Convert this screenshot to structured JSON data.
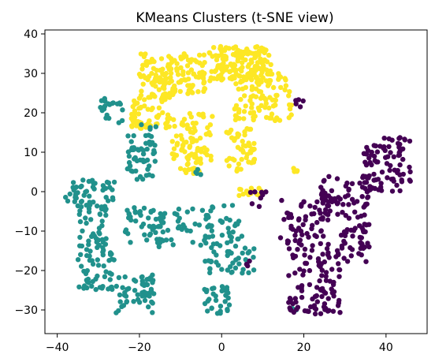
{
  "chart_data": {
    "type": "scatter",
    "title": "KMeans Clusters (t-SNE view)",
    "xlabel": "",
    "ylabel": "",
    "xlim": [
      -43,
      50
    ],
    "ylim": [
      -36,
      41
    ],
    "x_ticks": [
      -40,
      -20,
      0,
      20,
      40
    ],
    "y_ticks": [
      -30,
      -20,
      -10,
      0,
      10,
      20,
      30,
      40
    ],
    "grid": false,
    "legend": "none",
    "series": [
      {
        "color": "#fde725",
        "clusters": [
          {
            "x": [
              -20,
              -4
            ],
            "y": [
              24,
              35
            ],
            "n": 150
          },
          {
            "x": [
              -3,
              12
            ],
            "y": [
              28,
              37
            ],
            "n": 150
          },
          {
            "x": [
              3,
              17
            ],
            "y": [
              18,
              30
            ],
            "n": 100
          },
          {
            "x": [
              -22,
              -12
            ],
            "y": [
              16,
              24
            ],
            "n": 60
          },
          {
            "x": [
              -12,
              -2
            ],
            "y": [
              8,
              20
            ],
            "n": 70
          },
          {
            "x": [
              -10,
              -5
            ],
            "y": [
              4,
              12
            ],
            "n": 20
          },
          {
            "x": [
              1,
              8
            ],
            "y": [
              5,
              16
            ],
            "n": 50
          },
          {
            "x": [
              4,
              10
            ],
            "y": [
              -1,
              1
            ],
            "n": 15
          },
          {
            "x": [
              17,
              18.5
            ],
            "y": [
              5,
              6.5
            ],
            "n": 4
          }
        ]
      },
      {
        "color": "#21918c",
        "clusters": [
          {
            "x": [
              -30,
              -24
            ],
            "y": [
              17,
              24
            ],
            "n": 20
          },
          {
            "x": [
              -23,
              -16
            ],
            "y": [
              3,
              17
            ],
            "n": 55
          },
          {
            "x": [
              -38,
              -26
            ],
            "y": [
              -3,
              3
            ],
            "n": 45
          },
          {
            "x": [
              -35,
              -28
            ],
            "y": [
              -15,
              -3
            ],
            "n": 50
          },
          {
            "x": [
              -35,
              -26
            ],
            "y": [
              -25,
              -15
            ],
            "n": 50
          },
          {
            "x": [
              -24,
              -14
            ],
            "y": [
              -13,
              -4
            ],
            "n": 45
          },
          {
            "x": [
              -16,
              5
            ],
            "y": [
              -14,
              -3
            ],
            "n": 80
          },
          {
            "x": [
              -26,
              -16
            ],
            "y": [
              -31,
              -21
            ],
            "n": 55
          },
          {
            "x": [
              -4,
              8
            ],
            "y": [
              -21,
              -14
            ],
            "n": 40
          },
          {
            "x": [
              -5,
              2
            ],
            "y": [
              -31,
              -24
            ],
            "n": 30
          },
          {
            "x": [
              -7,
              -5
            ],
            "y": [
              4,
              6
            ],
            "n": 4
          },
          {
            "x": [
              17,
              19
            ],
            "y": [
              -30,
              -29
            ],
            "n": 3
          }
        ]
      },
      {
        "color": "#440154",
        "clusters": [
          {
            "x": [
              34,
              46
            ],
            "y": [
              0,
              14
            ],
            "n": 90
          },
          {
            "x": [
              24,
              36
            ],
            "y": [
              -7,
              4
            ],
            "n": 60
          },
          {
            "x": [
              14,
              26
            ],
            "y": [
              -14,
              -2
            ],
            "n": 60
          },
          {
            "x": [
              16,
              29
            ],
            "y": [
              -31,
              -14
            ],
            "n": 100
          },
          {
            "x": [
              28,
              36
            ],
            "y": [
              -18,
              -8
            ],
            "n": 40
          },
          {
            "x": [
              7,
              11
            ],
            "y": [
              -5,
              0
            ],
            "n": 8
          },
          {
            "x": [
              6,
              7
            ],
            "y": [
              -19,
              -17
            ],
            "n": 3
          },
          {
            "x": [
              18,
              20
            ],
            "y": [
              20,
              24
            ],
            "n": 5
          }
        ]
      }
    ]
  }
}
